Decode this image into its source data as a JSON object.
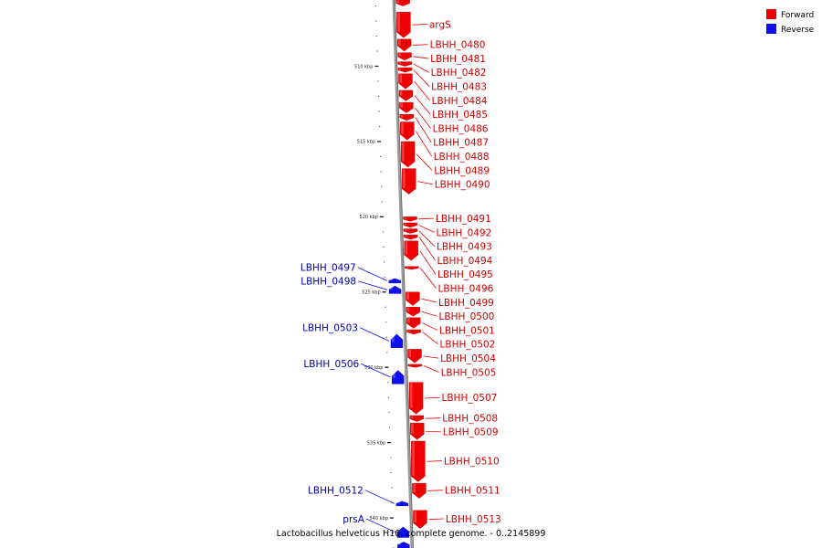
{
  "legend": {
    "forward_label": "Forward",
    "reverse_label": "Reverse",
    "forward_color": "#ee0000",
    "reverse_color": "#1010ee"
  },
  "footer": {
    "text": "Lactobacillus helveticus H10, complete genome. - 0..2145899"
  },
  "axis": {
    "kbp_start": 505.6,
    "kbp_end": 542.0,
    "major_ticks": [
      {
        "kbp": 510,
        "label": "510 kbp"
      },
      {
        "kbp": 515,
        "label": "515 kbp"
      },
      {
        "kbp": 520,
        "label": "520 kbp"
      },
      {
        "kbp": 525,
        "label": "525 kbp"
      },
      {
        "kbp": 530,
        "label": "530 kbp"
      },
      {
        "kbp": 535,
        "label": "535 kbp"
      },
      {
        "kbp": 540,
        "label": "540 kbp"
      }
    ]
  },
  "genes": [
    {
      "name": "",
      "strand": "forward",
      "start_kbp": 505.6,
      "end_kbp": 506.0
    },
    {
      "name": "argS",
      "strand": "forward",
      "start_kbp": 506.4,
      "end_kbp": 508.1
    },
    {
      "name": "LBHH_0480",
      "strand": "forward",
      "start_kbp": 508.2,
      "end_kbp": 509.0
    },
    {
      "name": "LBHH_0481",
      "strand": "forward",
      "start_kbp": 509.1,
      "end_kbp": 509.6
    },
    {
      "name": "LBHH_0482",
      "strand": "forward",
      "start_kbp": 509.7,
      "end_kbp": 510.0
    },
    {
      "name": "LBHH_0483",
      "strand": "forward",
      "start_kbp": 510.1,
      "end_kbp": 510.4
    },
    {
      "name": "LBHH_0484",
      "strand": "forward",
      "start_kbp": 510.5,
      "end_kbp": 511.5
    },
    {
      "name": "LBHH_0485",
      "strand": "forward",
      "start_kbp": 511.6,
      "end_kbp": 512.3
    },
    {
      "name": "LBHH_0486",
      "strand": "forward",
      "start_kbp": 512.4,
      "end_kbp": 513.1
    },
    {
      "name": "LBHH_0487",
      "strand": "forward",
      "start_kbp": 513.2,
      "end_kbp": 513.6
    },
    {
      "name": "LBHH_0488",
      "strand": "forward",
      "start_kbp": 513.7,
      "end_kbp": 514.9
    },
    {
      "name": "LBHH_0489",
      "strand": "forward",
      "start_kbp": 515.0,
      "end_kbp": 516.7
    },
    {
      "name": "LBHH_0490",
      "strand": "forward",
      "start_kbp": 516.8,
      "end_kbp": 518.5
    },
    {
      "name": "LBHH_0491",
      "strand": "forward",
      "start_kbp": 520.0,
      "end_kbp": 520.3
    },
    {
      "name": "LBHH_0492",
      "strand": "forward",
      "start_kbp": 520.4,
      "end_kbp": 520.7
    },
    {
      "name": "LBHH_0493",
      "strand": "forward",
      "start_kbp": 520.8,
      "end_kbp": 521.1
    },
    {
      "name": "LBHH_0494",
      "strand": "forward",
      "start_kbp": 521.2,
      "end_kbp": 521.5
    },
    {
      "name": "LBHH_0495",
      "strand": "forward",
      "start_kbp": 521.6,
      "end_kbp": 522.9
    },
    {
      "name": "LBHH_0496",
      "strand": "forward",
      "start_kbp": 523.3,
      "end_kbp": 523.5
    },
    {
      "name": "LBHH_0497",
      "strand": "reverse",
      "start_kbp": 524.1,
      "end_kbp": 524.4
    },
    {
      "name": "LBHH_0498",
      "strand": "reverse",
      "start_kbp": 524.6,
      "end_kbp": 525.1
    },
    {
      "name": "LBHH_0499",
      "strand": "forward",
      "start_kbp": 525.0,
      "end_kbp": 525.9
    },
    {
      "name": "LBHH_0500",
      "strand": "forward",
      "start_kbp": 526.0,
      "end_kbp": 526.6
    },
    {
      "name": "LBHH_0501",
      "strand": "forward",
      "start_kbp": 526.7,
      "end_kbp": 527.4
    },
    {
      "name": "LBHH_0502",
      "strand": "forward",
      "start_kbp": 527.5,
      "end_kbp": 527.8
    },
    {
      "name": "LBHH_0503",
      "strand": "reverse",
      "start_kbp": 527.8,
      "end_kbp": 528.7
    },
    {
      "name": "LBHH_0504",
      "strand": "forward",
      "start_kbp": 528.8,
      "end_kbp": 529.7
    },
    {
      "name": "LBHH_0505",
      "strand": "forward",
      "start_kbp": 529.8,
      "end_kbp": 530.0
    },
    {
      "name": "LBHH_0506",
      "strand": "reverse",
      "start_kbp": 530.2,
      "end_kbp": 531.1
    },
    {
      "name": "LBHH_0507",
      "strand": "forward",
      "start_kbp": 531.0,
      "end_kbp": 533.1
    },
    {
      "name": "LBHH_0508",
      "strand": "forward",
      "start_kbp": 533.2,
      "end_kbp": 533.6
    },
    {
      "name": "LBHH_0509",
      "strand": "forward",
      "start_kbp": 533.7,
      "end_kbp": 534.8
    },
    {
      "name": "LBHH_0510",
      "strand": "forward",
      "start_kbp": 534.9,
      "end_kbp": 537.6
    },
    {
      "name": "LBHH_0511",
      "strand": "forward",
      "start_kbp": 537.7,
      "end_kbp": 538.7
    },
    {
      "name": "LBHH_0512",
      "strand": "reverse",
      "start_kbp": 538.9,
      "end_kbp": 539.2
    },
    {
      "name": "LBHH_0513",
      "strand": "forward",
      "start_kbp": 539.5,
      "end_kbp": 540.7
    },
    {
      "name": "prsA",
      "strand": "reverse",
      "start_kbp": 540.6,
      "end_kbp": 541.3
    },
    {
      "name": "",
      "strand": "reverse",
      "start_kbp": 541.6,
      "end_kbp": 542.0
    }
  ]
}
